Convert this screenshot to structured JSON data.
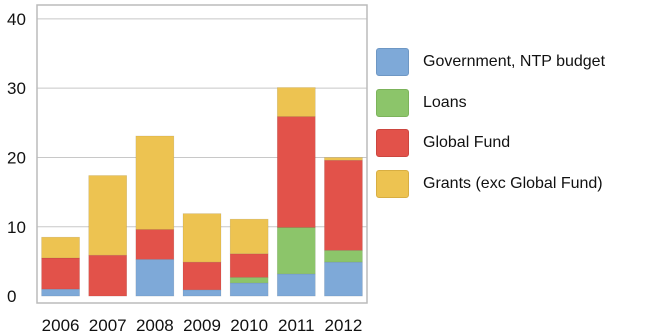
{
  "chart_data": {
    "type": "bar",
    "stacked": true,
    "categories": [
      "2006",
      "2007",
      "2008",
      "2009",
      "2010",
      "2011",
      "2012"
    ],
    "series": [
      {
        "name": "Government, NTP budget",
        "color": "#7ea9d8",
        "values": [
          1.0,
          0.0,
          5.3,
          0.9,
          1.9,
          3.2,
          4.9
        ]
      },
      {
        "name": "Loans",
        "color": "#8cc56a",
        "values": [
          0.0,
          0.0,
          0.0,
          0.0,
          0.8,
          6.7,
          1.7
        ]
      },
      {
        "name": "Global Fund",
        "color": "#e2524a",
        "values": [
          4.5,
          5.9,
          4.3,
          4.0,
          3.4,
          16.0,
          13.0
        ]
      },
      {
        "name": "Grants (exc Global Fund)",
        "color": "#edc351",
        "values": [
          3.0,
          11.5,
          13.5,
          7.0,
          5.0,
          4.2,
          0.4
        ]
      }
    ],
    "yticks": [
      0,
      10,
      20,
      30,
      40
    ],
    "ylim": [
      -1,
      42
    ],
    "grid": "horizontal",
    "legend_position": "right"
  }
}
